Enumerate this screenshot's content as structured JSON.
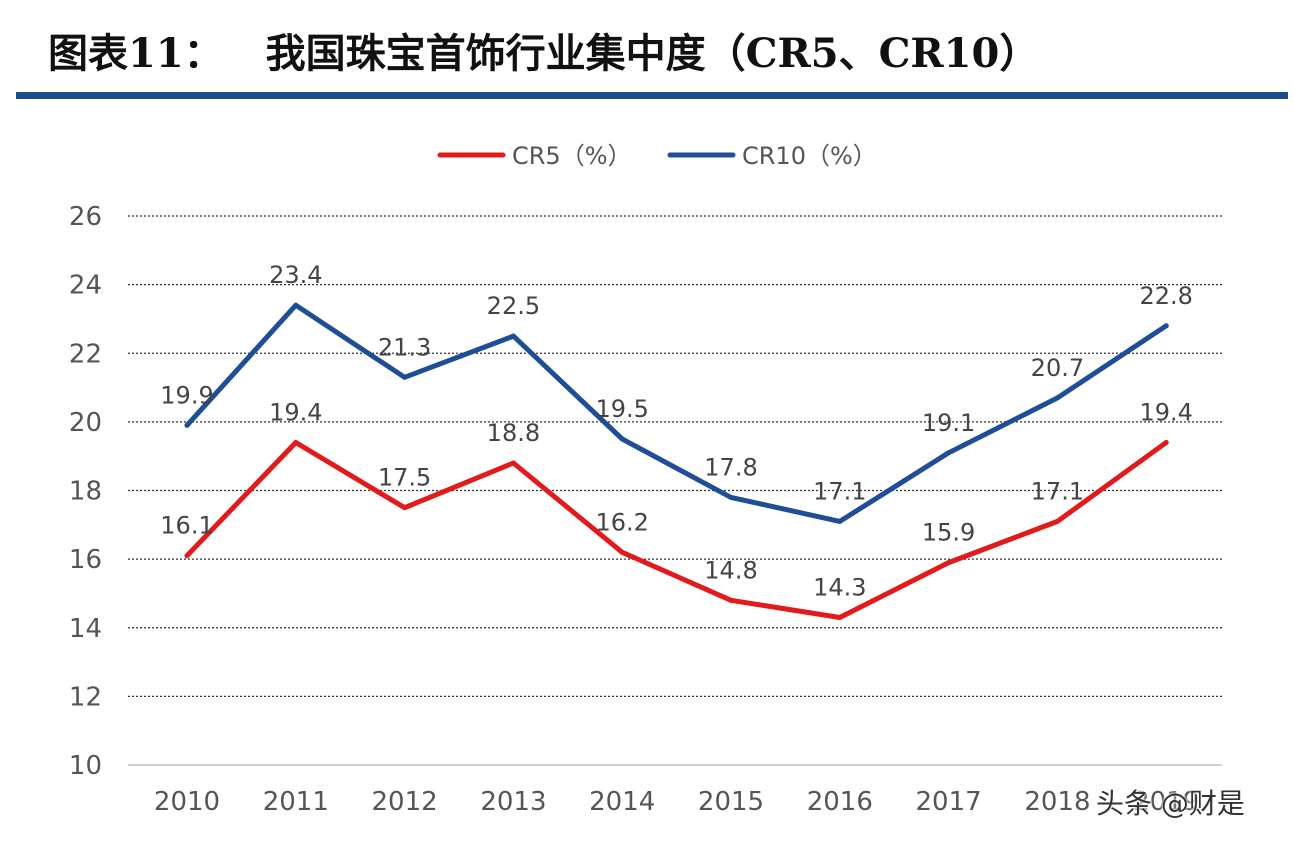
{
  "header": {
    "figure_label": "图表11：",
    "title": "我国珠宝首饰行业集中度（CR5、CR10）",
    "rule_color": "#1a4c8f"
  },
  "watermark": "头条 @财是",
  "chart_data": {
    "type": "line",
    "categories": [
      "2010",
      "2011",
      "2012",
      "2013",
      "2014",
      "2015",
      "2016",
      "2017",
      "2018",
      "2019"
    ],
    "series": [
      {
        "name": "CR5（%）",
        "color": "#e31a1c",
        "values": [
          16.1,
          19.4,
          17.5,
          18.8,
          16.2,
          14.8,
          14.3,
          15.9,
          17.1,
          19.4
        ],
        "labels": [
          "16.1",
          "19.4",
          "17.5",
          "18.8",
          "16.2",
          "14.8",
          "14.3",
          "15.9",
          "17.1",
          "19.4"
        ]
      },
      {
        "name": "CR10（%）",
        "color": "#1f4e96",
        "values": [
          19.9,
          23.4,
          21.3,
          22.5,
          19.5,
          17.8,
          17.1,
          19.1,
          20.7,
          22.8
        ],
        "labels": [
          "19.9",
          "23.4",
          "21.3",
          "22.5",
          "19.5",
          "17.8",
          "17.1",
          "19.1",
          "20.7",
          "22.8"
        ]
      }
    ],
    "ylim": [
      10,
      26
    ],
    "yticks": [
      "10",
      "12",
      "14",
      "16",
      "18",
      "20",
      "22",
      "24",
      "26"
    ],
    "grid": true,
    "legend_position": "top-center",
    "title": "",
    "xlabel": "",
    "ylabel": ""
  }
}
